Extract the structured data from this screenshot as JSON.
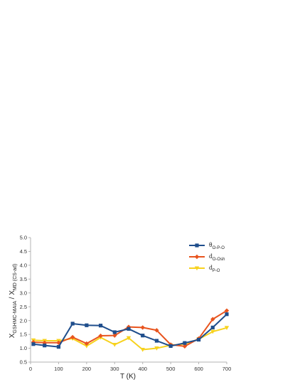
{
  "chart_data": {
    "type": "line",
    "xlabel": "T (K)",
    "ylabel": {
      "parts": [
        {
          "text": "X",
          "sub": "GSHMC-MAIA"
        },
        {
          "text": " / X",
          "sub": "MD (CS-ad)"
        }
      ]
    },
    "xlim": [
      0,
      700
    ],
    "ylim": [
      0.5,
      5.0
    ],
    "xticks": [
      "0",
      "100",
      "200",
      "300",
      "400",
      "500",
      "600",
      "700"
    ],
    "yticks": [
      "0.5",
      "1.0",
      "1.5",
      "2.0",
      "2.5",
      "3.0",
      "3.5",
      "4.0",
      "4.5",
      "5.0"
    ],
    "grid": false,
    "legend_position": "top-right",
    "x": [
      10,
      50,
      100,
      150,
      200,
      250,
      300,
      350,
      400,
      450,
      500,
      550,
      600,
      650,
      700
    ],
    "series": [
      {
        "name": "θ",
        "name_sub": "O-P-O",
        "color": "#1f4e8c",
        "marker": "square",
        "values": [
          1.15,
          1.1,
          1.05,
          1.89,
          1.83,
          1.82,
          1.58,
          1.7,
          1.46,
          1.27,
          1.08,
          1.19,
          1.31,
          1.75,
          2.23
        ]
      },
      {
        "name": "d",
        "name_sub": "O-Osh",
        "color": "#e8541e",
        "marker": "diamond",
        "values": [
          1.22,
          1.2,
          1.2,
          1.4,
          1.17,
          1.45,
          1.46,
          1.77,
          1.75,
          1.65,
          1.13,
          1.07,
          1.35,
          2.05,
          2.36
        ]
      },
      {
        "name": "d",
        "name_sub": "P-O",
        "color": "#f7d21e",
        "marker": "triangle-down",
        "values": [
          1.29,
          1.27,
          1.27,
          1.35,
          1.08,
          1.39,
          1.13,
          1.37,
          0.95,
          1.0,
          1.11,
          1.15,
          1.33,
          1.6,
          1.74
        ]
      }
    ]
  }
}
